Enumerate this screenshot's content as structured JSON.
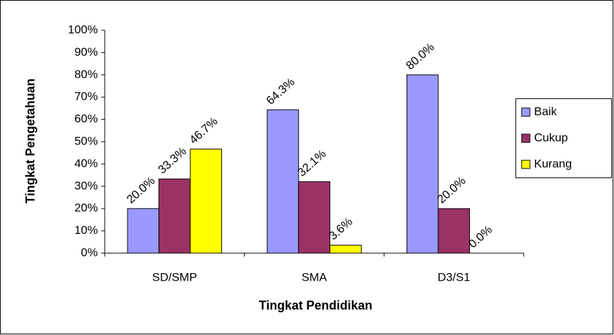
{
  "chart_data": {
    "type": "bar",
    "x_label": "Tingkat Pendidikan",
    "y_label": "Tingkat Pengetahuan",
    "categories": [
      "SD/SMP",
      "SMA",
      "D3/S1"
    ],
    "series": [
      {
        "name": "Baik",
        "color": "#9999ff",
        "values": [
          20.0,
          64.3,
          80.0
        ],
        "value_labels": [
          "20.0%",
          "64.3%",
          "80.0%"
        ]
      },
      {
        "name": "Cukup",
        "color": "#993366",
        "values": [
          33.3,
          32.1,
          20.0
        ],
        "value_labels": [
          "33.3%",
          "32.1%",
          "20.0%"
        ]
      },
      {
        "name": "Kurang",
        "color": "#ffff00",
        "values": [
          46.7,
          3.6,
          0.0
        ],
        "value_labels": [
          "46.7%",
          "3.6%",
          "0.0%"
        ]
      }
    ],
    "ylim": [
      0,
      100
    ],
    "yticks": [
      {
        "value": 0,
        "label": "0%"
      },
      {
        "value": 10,
        "label": "10%"
      },
      {
        "value": 20,
        "label": "20%"
      },
      {
        "value": 30,
        "label": "30%"
      },
      {
        "value": 40,
        "label": "40%"
      },
      {
        "value": 50,
        "label": "50%"
      },
      {
        "value": 60,
        "label": "60%"
      },
      {
        "value": 70,
        "label": "70%"
      },
      {
        "value": 80,
        "label": "80%"
      },
      {
        "value": 90,
        "label": "90%"
      },
      {
        "value": 100,
        "label": "100%"
      }
    ],
    "grid": false,
    "legend": "right"
  }
}
